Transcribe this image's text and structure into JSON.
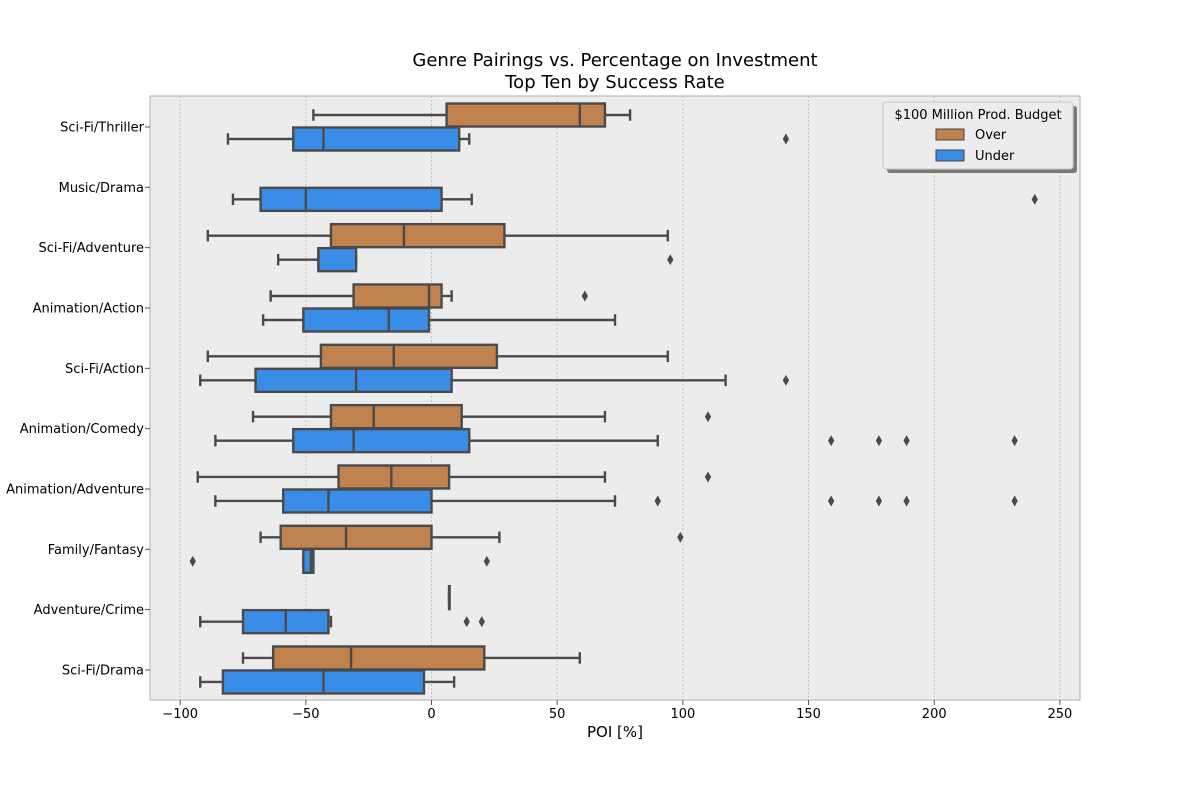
{
  "chart_data": {
    "type": "boxplot",
    "orientation": "horizontal",
    "title": "Genre Pairings vs. Percentage on Investment\nTop Ten by Success Rate",
    "xlabel": "POI [%]",
    "ylabel": "",
    "xlim": [
      -112,
      258
    ],
    "xticks": [
      -100,
      -50,
      0,
      50,
      100,
      150,
      200,
      250
    ],
    "grid": "vertical",
    "legend": {
      "title": "$100 Million Prod. Budget",
      "placement": "top-right",
      "entries": [
        {
          "name": "Over",
          "color": "#c0834f"
        },
        {
          "name": "Under",
          "color": "#3a8de6"
        }
      ]
    },
    "categories": [
      "Sci-Fi/Thriller",
      "Music/Drama",
      "Sci-Fi/Adventure",
      "Animation/Action",
      "Sci-Fi/Action",
      "Animation/Comedy",
      "Animation/Adventure",
      "Family/Fantasy",
      "Adventure/Crime",
      "Sci-Fi/Drama"
    ],
    "series": [
      {
        "name": "Over",
        "color": "#c0834f",
        "boxes": [
          {
            "category": "Sci-Fi/Thriller",
            "whislo": -47,
            "q1": 6,
            "med": 59,
            "q3": 69,
            "whishi": 79,
            "fliers": []
          },
          null,
          {
            "category": "Sci-Fi/Adventure",
            "whislo": -89,
            "q1": -40,
            "med": -11,
            "q3": 29,
            "whishi": 94,
            "fliers": []
          },
          {
            "category": "Animation/Action",
            "whislo": -64,
            "q1": -31,
            "med": -1,
            "q3": 4,
            "whishi": 8,
            "fliers": [
              61
            ]
          },
          {
            "category": "Sci-Fi/Action",
            "whislo": -89,
            "q1": -44,
            "med": -15,
            "q3": 26,
            "whishi": 94,
            "fliers": []
          },
          {
            "category": "Animation/Comedy",
            "whislo": -71,
            "q1": -40,
            "med": -23,
            "q3": 12,
            "whishi": 69,
            "fliers": [
              110
            ]
          },
          {
            "category": "Animation/Adventure",
            "whislo": -93,
            "q1": -37,
            "med": -16,
            "q3": 7,
            "whishi": 69,
            "fliers": [
              110
            ]
          },
          {
            "category": "Family/Fantasy",
            "whislo": -68,
            "q1": -60,
            "med": -34,
            "q3": 0,
            "whishi": 27,
            "fliers": [
              99
            ]
          },
          {
            "category": "Adventure/Crime",
            "whislo": 7,
            "q1": 7,
            "med": 7,
            "q3": 7,
            "whishi": 7,
            "fliers": []
          },
          {
            "category": "Sci-Fi/Drama",
            "whislo": -75,
            "q1": -63,
            "med": -32,
            "q3": 21,
            "whishi": 59,
            "fliers": []
          }
        ]
      },
      {
        "name": "Under",
        "color": "#3a8de6",
        "boxes": [
          {
            "category": "Sci-Fi/Thriller",
            "whislo": -81,
            "q1": -55,
            "med": -43,
            "q3": 11,
            "whishi": 15,
            "fliers": [
              141
            ]
          },
          {
            "category": "Music/Drama",
            "whislo": -79,
            "q1": -68,
            "med": -50,
            "q3": 4,
            "whishi": 16,
            "fliers": [
              240
            ]
          },
          {
            "category": "Sci-Fi/Adventure",
            "whislo": -61,
            "q1": -45,
            "med": -45,
            "q3": -30,
            "whishi": -30,
            "fliers": [
              95
            ]
          },
          {
            "category": "Animation/Action",
            "whislo": -67,
            "q1": -51,
            "med": -17,
            "q3": -1,
            "whishi": 73,
            "fliers": []
          },
          {
            "category": "Sci-Fi/Action",
            "whislo": -92,
            "q1": -70,
            "med": -30,
            "q3": 8,
            "whishi": 117,
            "fliers": [
              141
            ]
          },
          {
            "category": "Animation/Comedy",
            "whislo": -86,
            "q1": -55,
            "med": -31,
            "q3": 15,
            "whishi": 90,
            "fliers": [
              159,
              178,
              189,
              232
            ]
          },
          {
            "category": "Animation/Adventure",
            "whislo": -86,
            "q1": -59,
            "med": -41,
            "q3": 0,
            "whishi": 73,
            "fliers": [
              90,
              159,
              178,
              189,
              232
            ]
          },
          {
            "category": "Family/Fantasy",
            "whislo": -51,
            "q1": -51,
            "med": -48,
            "q3": -47,
            "whishi": -47,
            "fliers": [
              -95,
              22
            ]
          },
          {
            "category": "Adventure/Crime",
            "whislo": -92,
            "q1": -75,
            "med": -58,
            "q3": -41,
            "whishi": -40,
            "fliers": [
              14,
              20
            ]
          },
          {
            "category": "Sci-Fi/Drama",
            "whislo": -92,
            "q1": -83,
            "med": -43,
            "q3": -3,
            "whishi": 9,
            "fliers": []
          }
        ]
      }
    ]
  }
}
